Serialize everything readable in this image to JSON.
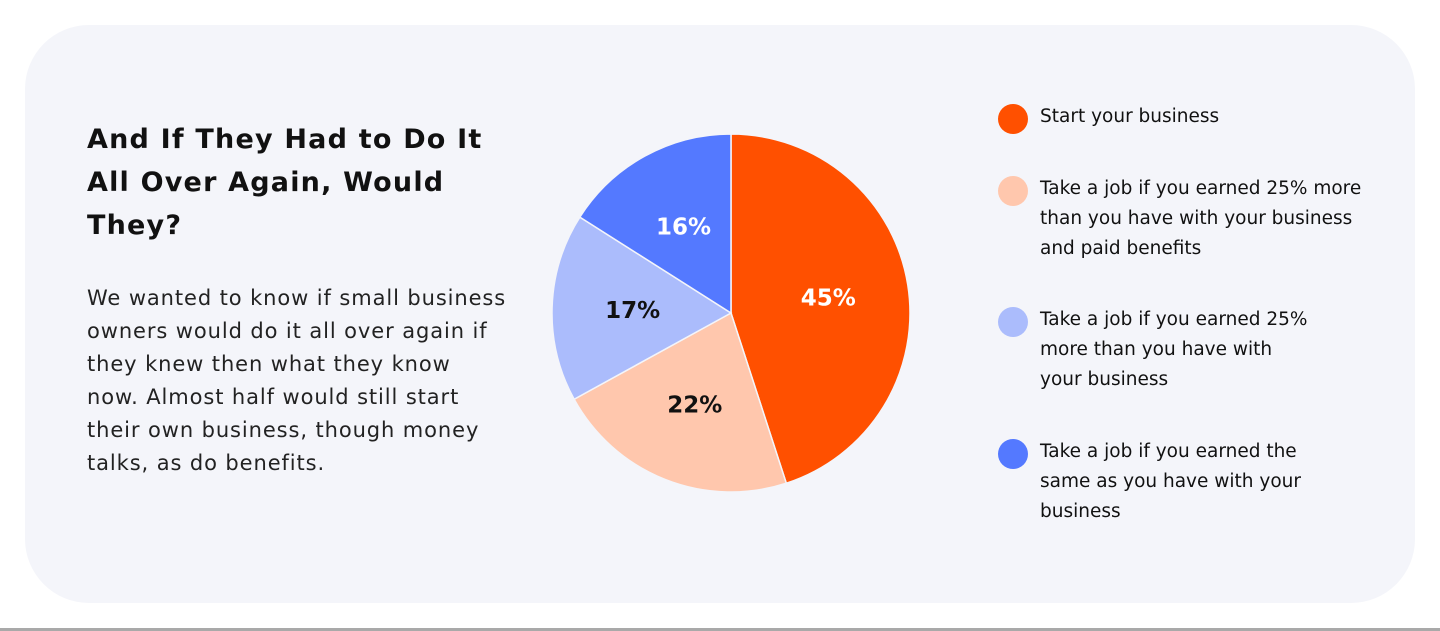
{
  "title": "And If They Had to Do It All Over Again, Would They?",
  "description": "We wanted to know if small business owners would do it all over again if they knew then what they know now. Almost half would still start their own business, though money talks, as do benefits.",
  "chart_data": {
    "type": "pie",
    "title": "",
    "start_angle": "12 o'clock",
    "direction": "clockwise",
    "legend_position": "right",
    "categories": [
      "Start your business",
      "Take a job if you earned 25% more than you have with your business and paid benefits",
      "Take a job if you earned 25% more than you have with your business",
      "Take a job if you earned the same as you have with your business"
    ],
    "values": [
      45,
      22,
      17,
      16
    ],
    "data_labels": [
      "45%",
      "22%",
      "17%",
      "16%"
    ],
    "colors": [
      "#ff5000",
      "#ffc7ad",
      "#abbcfc",
      "#5479ff"
    ],
    "label_colors": [
      "#ffffff",
      "#111111",
      "#111111",
      "#ffffff"
    ]
  }
}
